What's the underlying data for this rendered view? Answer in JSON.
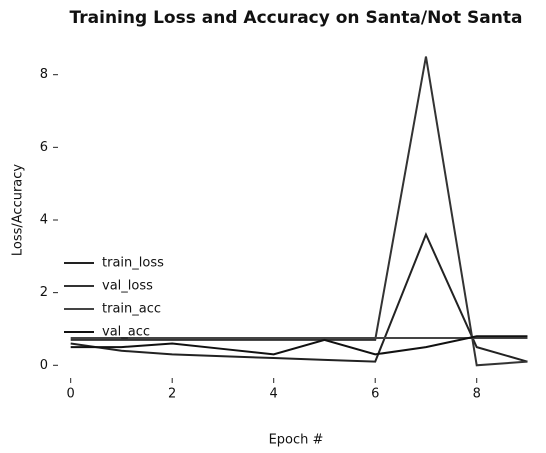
{
  "chart_data": {
    "type": "line",
    "title": "Training Loss and Accuracy on Santa/Not Santa",
    "xlabel": "Epoch #",
    "ylabel": "Loss/Accuracy",
    "x": [
      0,
      1,
      2,
      3,
      4,
      5,
      6,
      7,
      8,
      9
    ],
    "series": [
      {
        "name": "train_loss",
        "color": "#222222",
        "values": [
          0.6,
          0.4,
          0.3,
          0.25,
          0.2,
          0.15,
          0.1,
          3.6,
          0.5,
          0.1
        ]
      },
      {
        "name": "val_loss",
        "color": "#333333",
        "values": [
          0.7,
          0.7,
          0.7,
          0.7,
          0.7,
          0.7,
          0.7,
          8.5,
          0.0,
          0.1
        ]
      },
      {
        "name": "train_acc",
        "color": "#444444",
        "values": [
          0.75,
          0.75,
          0.75,
          0.75,
          0.75,
          0.75,
          0.75,
          0.75,
          0.75,
          0.75
        ]
      },
      {
        "name": "val_acc",
        "color": "#111111",
        "values": [
          0.5,
          0.5,
          0.6,
          0.45,
          0.3,
          0.7,
          0.3,
          0.5,
          0.8,
          0.8
        ]
      }
    ],
    "xlim": [
      -0.25,
      9.05
    ],
    "ylim": [
      -0.35,
      8.9
    ],
    "xticks": [
      0,
      2,
      4,
      6,
      8
    ],
    "yticks": [
      0,
      2,
      4,
      6,
      8
    ],
    "legend": "lower left"
  }
}
